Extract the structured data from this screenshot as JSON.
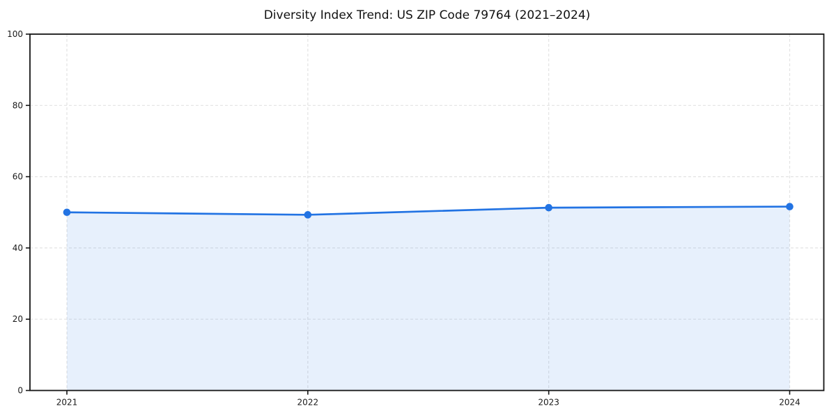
{
  "chart_data": {
    "type": "area",
    "title": "Diversity Index Trend: US ZIP Code 79764 (2021–2024)",
    "x": [
      "2021",
      "2022",
      "2023",
      "2024"
    ],
    "series": [
      {
        "name": "Diversity Index",
        "values": [
          50.0,
          49.3,
          51.3,
          51.6
        ]
      }
    ],
    "xlabel": "",
    "ylabel": "",
    "ylim": [
      0,
      100
    ],
    "yticks": [
      0,
      20,
      40,
      60,
      80,
      100
    ],
    "grid": {
      "show": true,
      "style": "dashed",
      "color": "#e3e3e3"
    },
    "legend": "none",
    "colors": {
      "line": "#2273e3",
      "marker": "#2273e3",
      "fill": "#2273e3",
      "fill_opacity": "0.11",
      "spine": "#141414",
      "tick_text": "#1a1a1a",
      "title": "#111111"
    }
  }
}
